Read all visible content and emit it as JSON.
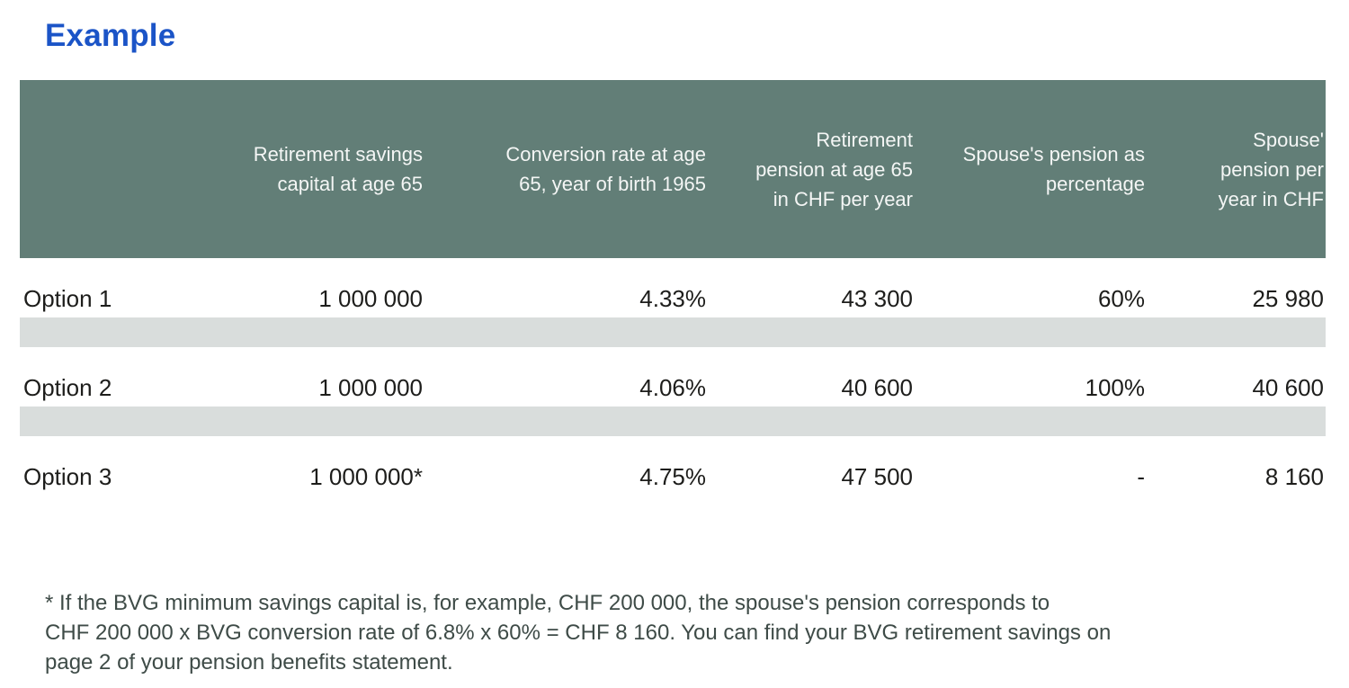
{
  "page": {
    "title": "Example"
  },
  "colors": {
    "title_blue": "#1b54c7",
    "header_bg": "#627e77",
    "header_text": "#f4f6f5",
    "stripe_bg": "#d9dddc",
    "body_text": "#1d1d1b",
    "footnote_text": "#3e4b47"
  },
  "table": {
    "columns": [
      {
        "id": "option",
        "align": "left",
        "lines": []
      },
      {
        "id": "capital",
        "align": "right",
        "lines": [
          "Retirement savings",
          "capital at age 65"
        ]
      },
      {
        "id": "conversion",
        "align": "right",
        "lines": [
          "Conversion rate at age",
          "65, year of birth 1965"
        ]
      },
      {
        "id": "pension",
        "align": "right",
        "lines": [
          "Retirement",
          "pension at age 65",
          "in CHF per year"
        ]
      },
      {
        "id": "spouse_pct",
        "align": "right",
        "lines": [
          "Spouse's pension as",
          "percentage"
        ]
      },
      {
        "id": "spouse_chf",
        "align": "right",
        "lines": [
          "Spouse'",
          "pension per",
          "year in CHF"
        ]
      }
    ],
    "rows": [
      {
        "option": "Option 1",
        "capital": "1 000 000",
        "conversion": "4.33%",
        "pension": "43 300",
        "spouse_pct": "60%",
        "spouse_chf": "25 980",
        "stripe_after": true
      },
      {
        "option": "Option 2",
        "capital": "1 000 000",
        "conversion": "4.06%",
        "pension": "40 600",
        "spouse_pct": "100%",
        "spouse_chf": "40 600",
        "stripe_after": true
      },
      {
        "option": "Option 3",
        "capital": "1 000 000*",
        "conversion": "4.75%",
        "pension": "47 500",
        "spouse_pct": "-",
        "spouse_chf": "8 160",
        "stripe_after": false
      }
    ]
  },
  "footnote": {
    "lines": [
      "* If the BVG minimum savings capital is, for example, CHF 200 000, the spouse's pension corresponds to",
      "CHF 200 000 x BVG conversion rate of 6.8% x 60% = CHF 8 160. You can find your BVG retirement savings on",
      "page 2 of your pension benefits statement."
    ]
  }
}
